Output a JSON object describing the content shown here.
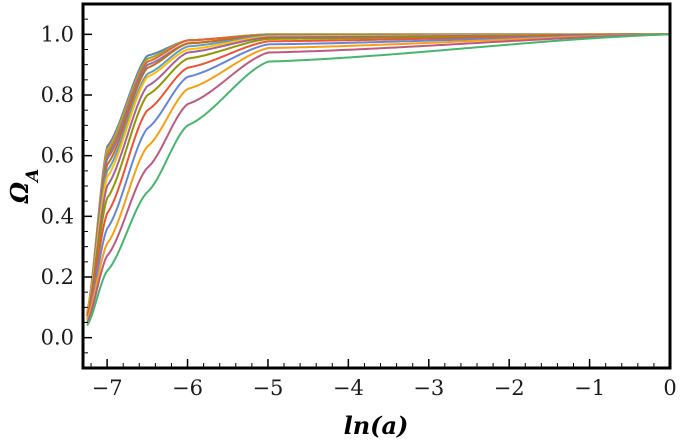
{
  "chart_data": {
    "type": "line",
    "xlabel": "ln(a)",
    "ylabel": "Ω_A",
    "xlim": [
      -7.3,
      0
    ],
    "ylim": [
      -0.1,
      1.1
    ],
    "xticks": [
      "−7",
      "−6",
      "−5",
      "−4",
      "−3",
      "−2",
      "−1",
      "0"
    ],
    "xtick_values": [
      -7,
      -6,
      -5,
      -4,
      -3,
      -2,
      -1,
      0
    ],
    "yticks": [
      "0.0",
      "0.2",
      "0.4",
      "0.6",
      "0.8",
      "1.0"
    ],
    "ytick_values": [
      0,
      0.2,
      0.4,
      0.6,
      0.8,
      1.0
    ],
    "grid": false,
    "legend": "none",
    "x_start": -7.25,
    "x_end": 0,
    "series": [
      {
        "color": "#5E81B5",
        "y_at_x": [
          [
            -7.25,
            0.08
          ],
          [
            -7.0,
            0.63
          ],
          [
            -6.5,
            0.93
          ],
          [
            -6.0,
            0.98
          ],
          [
            -5.0,
            1.0
          ],
          [
            0,
            1.0
          ]
        ]
      },
      {
        "color": "#E19C24",
        "y_at_x": [
          [
            -7.25,
            0.08
          ],
          [
            -7.0,
            0.62
          ],
          [
            -6.5,
            0.92
          ],
          [
            -6.0,
            0.98
          ],
          [
            -5.0,
            1.0
          ],
          [
            0,
            1.0
          ]
        ]
      },
      {
        "color": "#8FB032",
        "y_at_x": [
          [
            -7.25,
            0.08
          ],
          [
            -7.0,
            0.61
          ],
          [
            -6.5,
            0.92
          ],
          [
            -6.0,
            0.98
          ],
          [
            -5.0,
            1.0
          ],
          [
            0,
            1.0
          ]
        ]
      },
      {
        "color": "#EB6235",
        "y_at_x": [
          [
            -7.25,
            0.08
          ],
          [
            -7.0,
            0.6
          ],
          [
            -6.5,
            0.91
          ],
          [
            -6.0,
            0.98
          ],
          [
            -5.0,
            0.998
          ],
          [
            0,
            1.0
          ]
        ]
      },
      {
        "color": "#8778B3",
        "y_at_x": [
          [
            -7.25,
            0.08
          ],
          [
            -7.0,
            0.59
          ],
          [
            -6.5,
            0.9
          ],
          [
            -6.0,
            0.97
          ],
          [
            -5.0,
            0.997
          ],
          [
            0,
            1.0
          ]
        ]
      },
      {
        "color": "#C56E1A",
        "y_at_x": [
          [
            -7.25,
            0.08
          ],
          [
            -7.0,
            0.57
          ],
          [
            -6.5,
            0.89
          ],
          [
            -6.0,
            0.97
          ],
          [
            -5.0,
            0.996
          ],
          [
            0,
            1.0
          ]
        ]
      },
      {
        "color": "#5D9EC7",
        "y_at_x": [
          [
            -7.25,
            0.08
          ],
          [
            -7.0,
            0.55
          ],
          [
            -6.5,
            0.87
          ],
          [
            -6.0,
            0.96
          ],
          [
            -5.0,
            0.995
          ],
          [
            0,
            1.0
          ]
        ]
      },
      {
        "color": "#FFBF00",
        "y_at_x": [
          [
            -7.25,
            0.08
          ],
          [
            -7.0,
            0.53
          ],
          [
            -6.5,
            0.86
          ],
          [
            -6.0,
            0.95
          ],
          [
            -5.0,
            0.993
          ],
          [
            0,
            1.0
          ]
        ]
      },
      {
        "color": "#A5609D",
        "y_at_x": [
          [
            -7.25,
            0.07
          ],
          [
            -7.0,
            0.5
          ],
          [
            -6.5,
            0.83
          ],
          [
            -6.0,
            0.94
          ],
          [
            -5.0,
            0.99
          ],
          [
            0,
            1.0
          ]
        ]
      },
      {
        "color": "#929600",
        "y_at_x": [
          [
            -7.25,
            0.07
          ],
          [
            -7.0,
            0.46
          ],
          [
            -6.5,
            0.8
          ],
          [
            -6.0,
            0.92
          ],
          [
            -5.0,
            0.985
          ],
          [
            0,
            1.0
          ]
        ]
      },
      {
        "color": "#E95536",
        "y_at_x": [
          [
            -7.25,
            0.07
          ],
          [
            -7.0,
            0.41
          ],
          [
            -6.5,
            0.75
          ],
          [
            -6.0,
            0.89
          ],
          [
            -5.0,
            0.977
          ],
          [
            0,
            1.0
          ]
        ]
      },
      {
        "color": "#6685D9",
        "y_at_x": [
          [
            -7.25,
            0.06
          ],
          [
            -7.0,
            0.36
          ],
          [
            -6.5,
            0.69
          ],
          [
            -6.0,
            0.86
          ],
          [
            -5.0,
            0.967
          ],
          [
            0,
            1.0
          ]
        ]
      },
      {
        "color": "#F89F13",
        "y_at_x": [
          [
            -7.25,
            0.06
          ],
          [
            -7.0,
            0.31
          ],
          [
            -6.5,
            0.63
          ],
          [
            -6.0,
            0.82
          ],
          [
            -5.0,
            0.955
          ],
          [
            0,
            1.0
          ]
        ]
      },
      {
        "color": "#BC5B80",
        "y_at_x": [
          [
            -7.25,
            0.05
          ],
          [
            -7.0,
            0.27
          ],
          [
            -6.5,
            0.56
          ],
          [
            -6.0,
            0.77
          ],
          [
            -5.0,
            0.94
          ],
          [
            0,
            1.0
          ]
        ]
      },
      {
        "color": "#47B66D",
        "y_at_x": [
          [
            -7.25,
            0.04
          ],
          [
            -7.0,
            0.22
          ],
          [
            -6.5,
            0.48
          ],
          [
            -6.0,
            0.7
          ],
          [
            -5.0,
            0.91
          ],
          [
            0,
            1.0
          ]
        ]
      }
    ]
  }
}
